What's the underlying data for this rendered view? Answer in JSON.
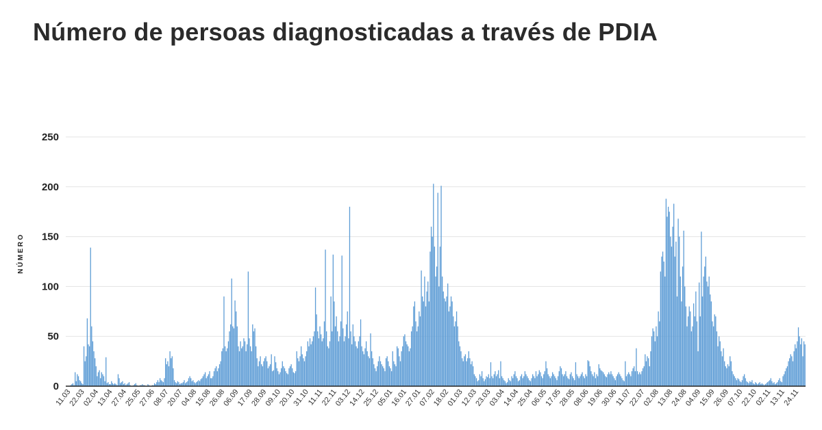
{
  "chart_data": {
    "type": "bar",
    "title": "Número de persoas diagnosticadas a través de PDIA",
    "ylabel": "NÚMERO",
    "xlabel": "",
    "ylim": [
      0,
      250
    ],
    "y_ticks": [
      0,
      50,
      100,
      150,
      200,
      250
    ],
    "grid": true,
    "bar_color": "#5b9bd5",
    "x_tick_labels": [
      "11.03",
      "22.03",
      "02.04",
      "13.04",
      "27.04",
      "25.05",
      "27.06",
      "08.07",
      "20.07",
      "04.08",
      "15.08",
      "26.08",
      "06.09",
      "17.09",
      "28.09",
      "09.10",
      "20.10",
      "31.10",
      "11.11",
      "22.11",
      "03.12",
      "14.12",
      "25.12",
      "05.01",
      "16.01",
      "27.01",
      "07.02",
      "18.02",
      "01.03",
      "12.03",
      "23.03",
      "03.04",
      "14.04",
      "25.04",
      "06.05",
      "17.05",
      "28.05",
      "08.06",
      "19.06",
      "30.06",
      "11.07",
      "22.07",
      "02.08",
      "13.08",
      "24.08",
      "04.09",
      "15.09",
      "26.09",
      "07.10",
      "22.10",
      "02.11",
      "13.11",
      "24.11"
    ],
    "values": [
      0,
      0,
      0,
      0,
      1,
      2,
      3,
      1,
      14,
      5,
      12,
      10,
      6,
      5,
      3,
      2,
      40,
      25,
      30,
      68,
      42,
      40,
      139,
      60,
      45,
      35,
      28,
      20,
      10,
      14,
      16,
      8,
      14,
      12,
      10,
      5,
      29,
      3,
      4,
      2,
      2,
      5,
      3,
      2,
      3,
      2,
      1,
      12,
      8,
      3,
      4,
      5,
      2,
      3,
      1,
      2,
      3,
      4,
      1,
      0,
      0,
      1,
      2,
      3,
      1,
      0,
      0,
      1,
      1,
      2,
      1,
      1,
      0,
      0,
      2,
      1,
      0,
      0,
      1,
      1,
      3,
      2,
      4,
      6,
      4,
      8,
      6,
      5,
      4,
      8,
      28,
      22,
      25,
      20,
      35,
      28,
      30,
      18,
      6,
      4,
      3,
      5,
      4,
      2,
      3,
      3,
      4,
      6,
      3,
      4,
      5,
      8,
      10,
      8,
      5,
      6,
      4,
      3,
      4,
      5,
      6,
      5,
      7,
      8,
      10,
      12,
      14,
      8,
      10,
      12,
      15,
      8,
      8,
      10,
      15,
      18,
      20,
      15,
      18,
      22,
      25,
      35,
      38,
      90,
      40,
      35,
      38,
      45,
      55,
      62,
      108,
      60,
      58,
      86,
      75,
      60,
      40,
      35,
      45,
      38,
      40,
      48,
      45,
      35,
      42,
      115,
      48,
      40,
      35,
      62,
      55,
      58,
      40,
      28,
      20,
      25,
      30,
      22,
      20,
      25,
      28,
      30,
      25,
      18,
      20,
      22,
      32,
      15,
      16,
      30,
      24,
      18,
      15,
      12,
      14,
      18,
      25,
      20,
      18,
      15,
      13,
      12,
      18,
      20,
      22,
      18,
      14,
      13,
      15,
      35,
      28,
      25,
      30,
      40,
      32,
      28,
      25,
      30,
      35,
      45,
      40,
      48,
      42,
      45,
      50,
      55,
      99,
      72,
      55,
      48,
      60,
      52,
      45,
      48,
      65,
      137,
      55,
      40,
      38,
      45,
      90,
      55,
      132,
      85,
      60,
      70,
      55,
      45,
      50,
      65,
      131,
      58,
      45,
      50,
      62,
      75,
      48,
      180,
      55,
      42,
      62,
      50,
      45,
      40,
      38,
      45,
      50,
      67,
      40,
      35,
      32,
      38,
      45,
      35,
      30,
      28,
      53,
      35,
      28,
      22,
      18,
      15,
      20,
      25,
      30,
      25,
      22,
      20,
      18,
      15,
      28,
      30,
      25,
      20,
      18,
      15,
      35,
      25,
      22,
      20,
      40,
      38,
      30,
      25,
      35,
      40,
      50,
      52,
      45,
      42,
      40,
      35,
      38,
      55,
      60,
      80,
      85,
      65,
      55,
      60,
      75,
      70,
      116,
      90,
      85,
      110,
      80,
      95,
      105,
      85,
      135,
      160,
      150,
      203,
      140,
      110,
      120,
      194,
      100,
      140,
      201,
      110,
      95,
      88,
      85,
      90,
      103,
      75,
      80,
      90,
      85,
      70,
      60,
      65,
      75,
      60,
      45,
      40,
      35,
      28,
      25,
      30,
      32,
      25,
      28,
      35,
      28,
      22,
      25,
      20,
      12,
      10,
      8,
      5,
      6,
      12,
      10,
      15,
      8,
      5,
      7,
      10,
      9,
      12,
      8,
      24,
      10,
      8,
      12,
      15,
      10,
      12,
      16,
      8,
      25,
      10,
      8,
      6,
      5,
      3,
      4,
      8,
      6,
      5,
      10,
      8,
      12,
      15,
      10,
      8,
      5,
      6,
      10,
      12,
      8,
      10,
      15,
      12,
      10,
      8,
      6,
      5,
      8,
      12,
      10,
      8,
      15,
      10,
      12,
      16,
      14,
      10,
      8,
      12,
      15,
      25,
      18,
      12,
      10,
      8,
      10,
      14,
      12,
      10,
      8,
      6,
      10,
      15,
      20,
      18,
      12,
      10,
      12,
      15,
      10,
      8,
      7,
      12,
      14,
      10,
      8,
      6,
      24,
      12,
      10,
      8,
      10,
      12,
      14,
      10,
      8,
      12,
      10,
      26,
      25,
      20,
      15,
      12,
      10,
      14,
      8,
      12,
      10,
      22,
      18,
      16,
      15,
      14,
      12,
      10,
      9,
      12,
      14,
      12,
      15,
      12,
      10,
      8,
      6,
      10,
      12,
      14,
      12,
      10,
      8,
      6,
      5,
      25,
      10,
      12,
      14,
      12,
      10,
      15,
      18,
      20,
      15,
      38,
      15,
      12,
      14,
      12,
      15,
      18,
      20,
      32,
      25,
      30,
      28,
      20,
      35,
      50,
      58,
      55,
      45,
      60,
      50,
      75,
      65,
      115,
      130,
      135,
      125,
      110,
      188,
      170,
      180,
      175,
      150,
      140,
      160,
      183,
      130,
      145,
      90,
      168,
      150,
      110,
      85,
      120,
      156,
      100,
      80,
      60,
      70,
      80,
      75,
      55,
      60,
      83,
      70,
      95,
      65,
      35,
      104,
      70,
      155,
      90,
      110,
      120,
      130,
      105,
      100,
      110,
      92,
      85,
      65,
      60,
      72,
      70,
      55,
      40,
      50,
      45,
      35,
      30,
      38,
      25,
      20,
      18,
      22,
      20,
      30,
      25,
      15,
      12,
      10,
      8,
      6,
      8,
      7,
      5,
      4,
      6,
      10,
      12,
      8,
      5,
      4,
      3,
      5,
      4,
      6,
      3,
      2,
      4,
      3,
      2,
      3,
      4,
      2,
      3,
      2,
      1,
      2,
      3,
      4,
      5,
      6,
      8,
      5,
      3,
      4,
      2,
      3,
      4,
      6,
      8,
      5,
      4,
      10,
      12,
      15,
      18,
      20,
      25,
      28,
      32,
      30,
      25,
      35,
      42,
      38,
      45,
      59,
      50,
      42,
      48,
      30,
      45,
      42
    ]
  }
}
